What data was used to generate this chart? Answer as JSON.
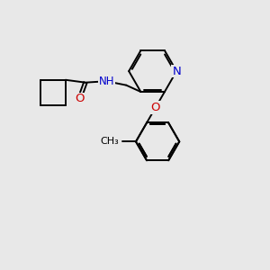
{
  "background_color": "#e8e8e8",
  "atom_colors": {
    "N": "#0000cc",
    "O": "#cc0000",
    "C": "#000000"
  },
  "bond_color": "#000000",
  "bond_width": 1.4
}
